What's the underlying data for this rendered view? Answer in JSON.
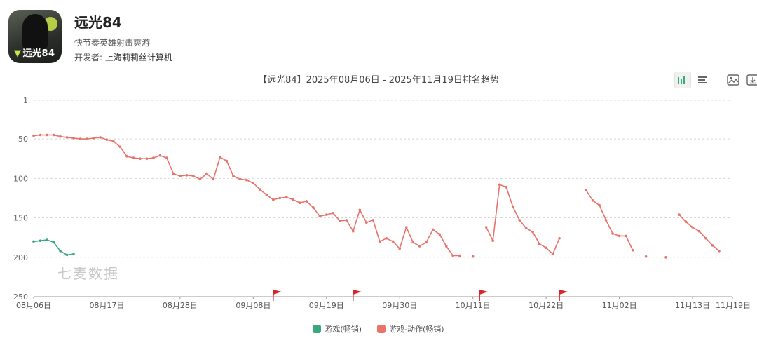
{
  "app": {
    "name": "远光84",
    "subtitle": "快节奏英雄射击爽游",
    "developer_label": "开发者:",
    "developer": "上海莉莉丝计算机",
    "icon_text": "远光84"
  },
  "chart_title": "【远光84】2025年08月06日 - 2025年11月19日排名趋势",
  "toolbar": [
    "bar-chart-icon",
    "list-icon",
    "image-icon",
    "download-icon"
  ],
  "watermark": "七麦数据",
  "colors": {
    "green": "#3aa87f",
    "red": "#e8736b",
    "flag": "#d7262b",
    "grid": "#e0e0e0"
  },
  "chart_data": {
    "type": "line",
    "title": "【远光84】2025年08月06日 - 2025年11月19日排名趋势",
    "y_axis": {
      "inverted": true,
      "ylim": [
        1,
        250
      ],
      "ticks": [
        1,
        50,
        100,
        150,
        200,
        250
      ]
    },
    "x_axis": {
      "start_date": "2025-08-06",
      "end_date": "2025-11-19",
      "tick_labels": [
        "08月06日",
        "08月17日",
        "08月28日",
        "09月08日",
        "09月19日",
        "09月30日",
        "10月11日",
        "10月22日",
        "11月02日",
        "11月13日",
        "11月19日"
      ],
      "tick_dates": [
        "2025-08-06",
        "2025-08-17",
        "2025-08-28",
        "2025-09-08",
        "2025-09-19",
        "2025-09-30",
        "2025-10-11",
        "2025-10-22",
        "2025-11-02",
        "2025-11-13",
        "2025-11-19"
      ]
    },
    "flags": [
      "2025-09-11",
      "2025-09-23",
      "2025-10-12",
      "2025-10-24"
    ],
    "grid": true,
    "legend_position": "bottom-center",
    "series": [
      {
        "name": "游戏(畅销)",
        "color": "#3aa87f",
        "points": [
          [
            "2025-08-06",
            180
          ],
          [
            "2025-08-07",
            179
          ],
          [
            "2025-08-08",
            178
          ],
          [
            "2025-08-09",
            181
          ],
          [
            "2025-08-10",
            192
          ],
          [
            "2025-08-11",
            197
          ],
          [
            "2025-08-12",
            196
          ]
        ]
      },
      {
        "name": "游戏-动作(畅销)",
        "color": "#e8736b",
        "points": [
          [
            "2025-08-06",
            46
          ],
          [
            "2025-08-07",
            45
          ],
          [
            "2025-08-08",
            45
          ],
          [
            "2025-08-09",
            45
          ],
          [
            "2025-08-10",
            47
          ],
          [
            "2025-08-11",
            48
          ],
          [
            "2025-08-12",
            49
          ],
          [
            "2025-08-13",
            50
          ],
          [
            "2025-08-14",
            50
          ],
          [
            "2025-08-15",
            49
          ],
          [
            "2025-08-16",
            48
          ],
          [
            "2025-08-17",
            51
          ],
          [
            "2025-08-18",
            53
          ],
          [
            "2025-08-19",
            60
          ],
          [
            "2025-08-20",
            72
          ],
          [
            "2025-08-21",
            74
          ],
          [
            "2025-08-22",
            75
          ],
          [
            "2025-08-23",
            75
          ],
          [
            "2025-08-24",
            74
          ],
          [
            "2025-08-25",
            71
          ],
          [
            "2025-08-26",
            74
          ],
          [
            "2025-08-27",
            94
          ],
          [
            "2025-08-28",
            97
          ],
          [
            "2025-08-29",
            96
          ],
          [
            "2025-08-30",
            97
          ],
          [
            "2025-08-31",
            101
          ],
          [
            "2025-09-01",
            94
          ],
          [
            "2025-09-02",
            101
          ],
          [
            "2025-09-03",
            73
          ],
          [
            "2025-09-04",
            78
          ],
          [
            "2025-09-05",
            97
          ],
          [
            "2025-09-06",
            101
          ],
          [
            "2025-09-07",
            102
          ],
          [
            "2025-09-08",
            106
          ],
          [
            "2025-09-09",
            114
          ],
          [
            "2025-09-10",
            121
          ],
          [
            "2025-09-11",
            127
          ],
          [
            "2025-09-12",
            125
          ],
          [
            "2025-09-13",
            124
          ],
          [
            "2025-09-14",
            127
          ],
          [
            "2025-09-15",
            131
          ],
          [
            "2025-09-16",
            129
          ],
          [
            "2025-09-17",
            137
          ],
          [
            "2025-09-18",
            148
          ],
          [
            "2025-09-19",
            146
          ],
          [
            "2025-09-20",
            144
          ],
          [
            "2025-09-21",
            154
          ],
          [
            "2025-09-22",
            153
          ],
          [
            "2025-09-23",
            167
          ],
          [
            "2025-09-24",
            140
          ],
          [
            "2025-09-25",
            156
          ],
          [
            "2025-09-26",
            153
          ],
          [
            "2025-09-27",
            180
          ],
          [
            "2025-09-28",
            176
          ],
          [
            "2025-09-29",
            180
          ],
          [
            "2025-09-30",
            189
          ],
          [
            "2025-10-01",
            162
          ],
          [
            "2025-10-02",
            181
          ],
          [
            "2025-10-03",
            186
          ],
          [
            "2025-10-04",
            181
          ],
          [
            "2025-10-05",
            165
          ],
          [
            "2025-10-06",
            171
          ],
          [
            "2025-10-07",
            186
          ],
          [
            "2025-10-08",
            198
          ],
          [
            "2025-10-09",
            198
          ],
          null,
          [
            "2025-10-11",
            199
          ],
          null,
          [
            "2025-10-13",
            162
          ],
          [
            "2025-10-14",
            179
          ],
          [
            "2025-10-15",
            108
          ],
          [
            "2025-10-16",
            111
          ],
          [
            "2025-10-17",
            136
          ],
          [
            "2025-10-18",
            153
          ],
          [
            "2025-10-19",
            163
          ],
          [
            "2025-10-20",
            168
          ],
          [
            "2025-10-21",
            183
          ],
          [
            "2025-10-22",
            188
          ],
          [
            "2025-10-23",
            196
          ],
          [
            "2025-10-24",
            176
          ],
          null,
          [
            "2025-10-28",
            115
          ],
          [
            "2025-10-29",
            128
          ],
          [
            "2025-10-30",
            134
          ],
          [
            "2025-10-31",
            153
          ],
          [
            "2025-11-01",
            170
          ],
          [
            "2025-11-02",
            173
          ],
          [
            "2025-11-03",
            173
          ],
          [
            "2025-11-04",
            191
          ],
          null,
          [
            "2025-11-06",
            199
          ],
          null,
          [
            "2025-11-09",
            200
          ],
          null,
          [
            "2025-11-11",
            146
          ],
          [
            "2025-11-12",
            155
          ],
          [
            "2025-11-13",
            162
          ],
          [
            "2025-11-14",
            167
          ],
          [
            "2025-11-15",
            176
          ],
          [
            "2025-11-16",
            185
          ],
          [
            "2025-11-17",
            192
          ]
        ]
      }
    ]
  }
}
